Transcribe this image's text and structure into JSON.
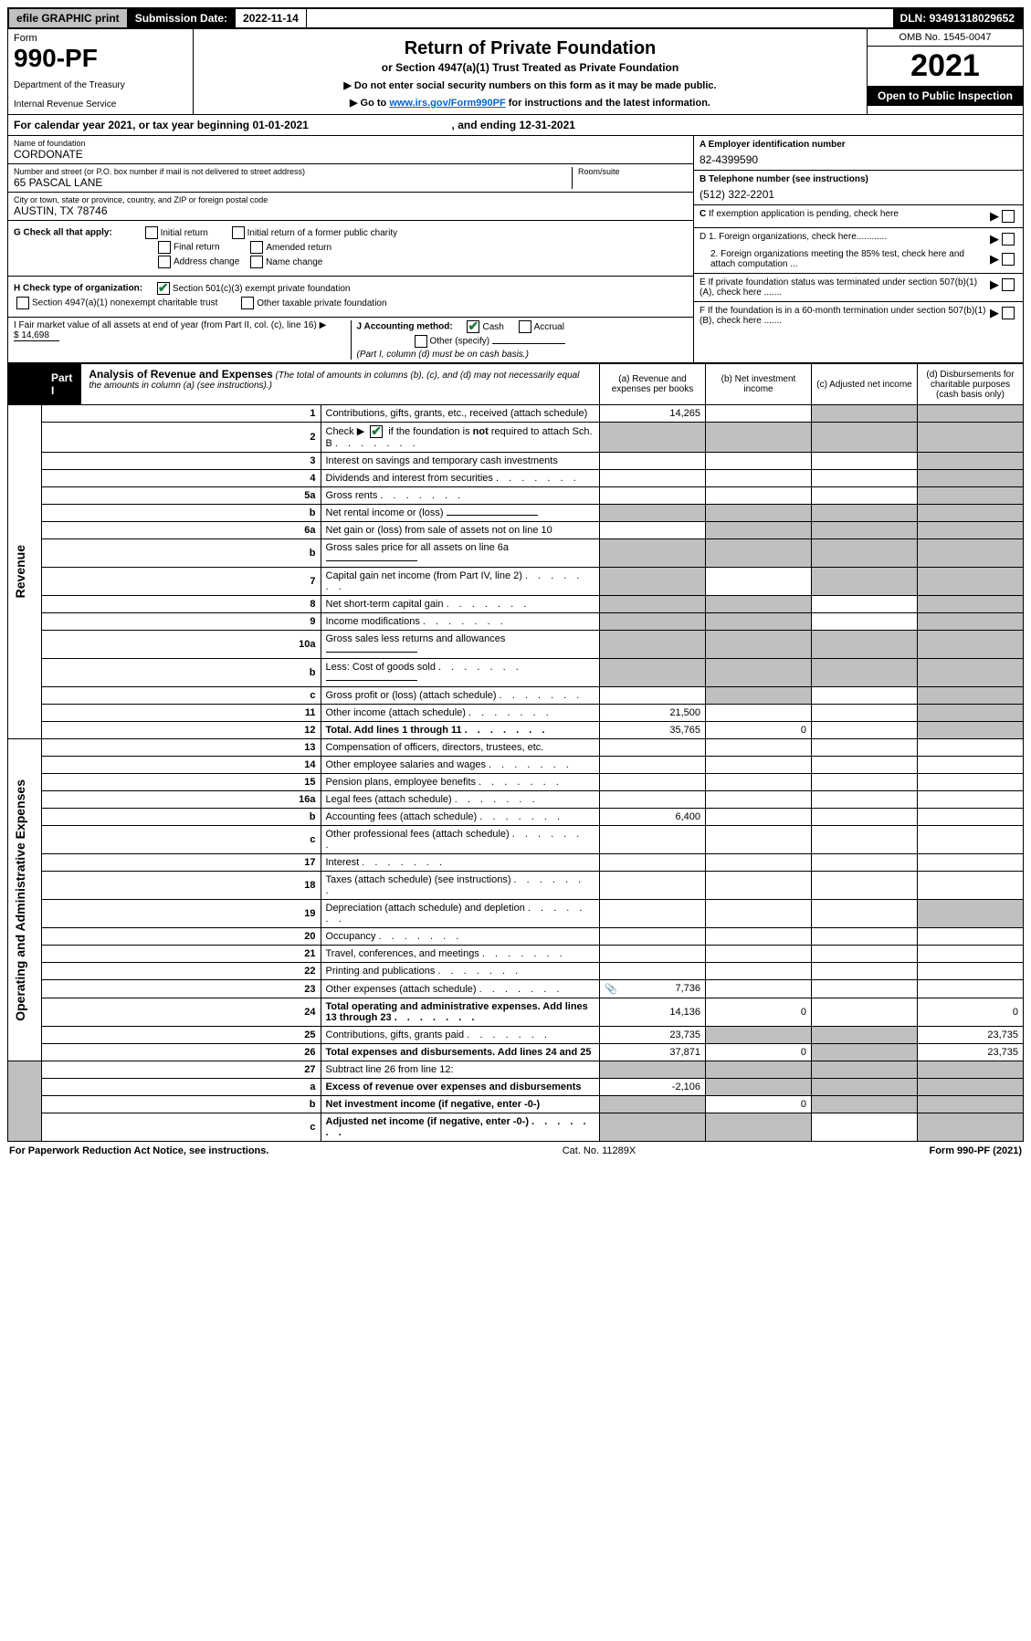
{
  "top": {
    "efile": "efile GRAPHIC print",
    "sub_label": "Submission Date:",
    "sub_date": "2022-11-14",
    "dln_label": "DLN:",
    "dln": "93491318029652"
  },
  "header": {
    "form_label": "Form",
    "form_number": "990-PF",
    "dept1": "Department of the Treasury",
    "dept2": "Internal Revenue Service",
    "title": "Return of Private Foundation",
    "subtitle": "or Section 4947(a)(1) Trust Treated as Private Foundation",
    "note1": "▶ Do not enter social security numbers on this form as it may be made public.",
    "note2_pre": "▶ Go to ",
    "note2_link": "www.irs.gov/Form990PF",
    "note2_post": " for instructions and the latest information.",
    "omb": "OMB No. 1545-0047",
    "year": "2021",
    "open": "Open to Public Inspection"
  },
  "calyear": {
    "text_pre": "For calendar year 2021, or tax year beginning ",
    "begin": "01-01-2021",
    "text_mid": " , and ending ",
    "end": "12-31-2021"
  },
  "entity": {
    "name_label": "Name of foundation",
    "name": "CORDONATE",
    "addr_label": "Number and street (or P.O. box number if mail is not delivered to street address)",
    "addr": "65 PASCAL LANE",
    "room_label": "Room/suite",
    "city_label": "City or town, state or province, country, and ZIP or foreign postal code",
    "city": "AUSTIN, TX  78746"
  },
  "right_info": {
    "A_label": "A Employer identification number",
    "A_val": "82-4399590",
    "B_label": "B Telephone number (see instructions)",
    "B_val": "(512) 322-2201",
    "C": "C If exemption application is pending, check here",
    "D1": "D 1. Foreign organizations, check here............",
    "D2": "2. Foreign organizations meeting the 85% test, check here and attach computation ...",
    "E": "E If private foundation status was terminated under section 507(b)(1)(A), check here .......",
    "F": "F If the foundation is in a 60-month termination under section 507(b)(1)(B), check here ......."
  },
  "checks": {
    "G_label": "G Check all that apply:",
    "initial": "Initial return",
    "initial_former": "Initial return of a former public charity",
    "final": "Final return",
    "amended": "Amended return",
    "addr_change": "Address change",
    "name_change": "Name change",
    "H_label": "H Check type of organization:",
    "H_501c3": "Section 501(c)(3) exempt private foundation",
    "H_4947": "Section 4947(a)(1) nonexempt charitable trust",
    "H_other": "Other taxable private foundation",
    "I_label": "I Fair market value of all assets at end of year (from Part II, col. (c), line 16) ▶",
    "I_val": "$  14,698",
    "J_label": "J Accounting method:",
    "J_cash": "Cash",
    "J_accrual": "Accrual",
    "J_other": "Other (specify)",
    "J_note": "(Part I, column (d) must be on cash basis.)"
  },
  "part1": {
    "label": "Part I",
    "title": "Analysis of Revenue and Expenses",
    "title_note": " (The total of amounts in columns (b), (c), and (d) may not necessarily equal the amounts in column (a) (see instructions).)",
    "col_a": "(a)  Revenue and expenses per books",
    "col_b": "(b)  Net investment income",
    "col_c": "(c)  Adjusted net income",
    "col_d": "(d)  Disbursements for charitable purposes (cash basis only)"
  },
  "side": {
    "revenue": "Revenue",
    "expenses": "Operating and Administrative Expenses"
  },
  "rows": [
    {
      "n": "1",
      "d": "Contributions, gifts, grants, etc., received (attach schedule)",
      "a": "14,265",
      "shade_b": false,
      "shade_c": true,
      "shade_d": true
    },
    {
      "n": "2",
      "d": "Check ▶ ✔ if the foundation is not required to attach Sch. B",
      "dots": true,
      "shade_a": true,
      "shade_b": true,
      "shade_c": true,
      "shade_d": true,
      "check": true
    },
    {
      "n": "3",
      "d": "Interest on savings and temporary cash investments",
      "shade_d": true
    },
    {
      "n": "4",
      "d": "Dividends and interest from securities",
      "dots": true,
      "shade_d": true
    },
    {
      "n": "5a",
      "d": "Gross rents",
      "dots": true,
      "shade_d": true
    },
    {
      "n": "b",
      "d": "Net rental income or (loss)",
      "inline": true,
      "shade_a": true,
      "shade_b": true,
      "shade_c": true,
      "shade_d": true
    },
    {
      "n": "6a",
      "d": "Net gain or (loss) from sale of assets not on line 10",
      "shade_b": true,
      "shade_c": true,
      "shade_d": true
    },
    {
      "n": "b",
      "d": "Gross sales price for all assets on line 6a",
      "inline": true,
      "shade_a": true,
      "shade_b": true,
      "shade_c": true,
      "shade_d": true
    },
    {
      "n": "7",
      "d": "Capital gain net income (from Part IV, line 2)",
      "dots": true,
      "shade_a": true,
      "shade_c": true,
      "shade_d": true
    },
    {
      "n": "8",
      "d": "Net short-term capital gain",
      "dots": true,
      "shade_a": true,
      "shade_b": true,
      "shade_d": true
    },
    {
      "n": "9",
      "d": "Income modifications",
      "dots": true,
      "shade_a": true,
      "shade_b": true,
      "shade_d": true
    },
    {
      "n": "10a",
      "d": "Gross sales less returns and allowances",
      "inline": true,
      "shade_a": true,
      "shade_b": true,
      "shade_c": true,
      "shade_d": true
    },
    {
      "n": "b",
      "d": "Less: Cost of goods sold",
      "dots": true,
      "inline": true,
      "shade_a": true,
      "shade_b": true,
      "shade_c": true,
      "shade_d": true
    },
    {
      "n": "c",
      "d": "Gross profit or (loss) (attach schedule)",
      "dots": true,
      "shade_b": true,
      "shade_d": true
    },
    {
      "n": "11",
      "d": "Other income (attach schedule)",
      "dots": true,
      "a": "21,500",
      "shade_d": true
    },
    {
      "n": "12",
      "d": "Total. Add lines 1 through 11",
      "dots": true,
      "bold": true,
      "a": "35,765",
      "b": "0",
      "shade_d": true
    }
  ],
  "exp_rows": [
    {
      "n": "13",
      "d": "Compensation of officers, directors, trustees, etc."
    },
    {
      "n": "14",
      "d": "Other employee salaries and wages",
      "dots": true
    },
    {
      "n": "15",
      "d": "Pension plans, employee benefits",
      "dots": true
    },
    {
      "n": "16a",
      "d": "Legal fees (attach schedule)",
      "dots": true
    },
    {
      "n": "b",
      "d": "Accounting fees (attach schedule)",
      "dots": true,
      "a": "6,400"
    },
    {
      "n": "c",
      "d": "Other professional fees (attach schedule)",
      "dots": true
    },
    {
      "n": "17",
      "d": "Interest",
      "dots": true
    },
    {
      "n": "18",
      "d": "Taxes (attach schedule) (see instructions)",
      "dots": true
    },
    {
      "n": "19",
      "d": "Depreciation (attach schedule) and depletion",
      "dots": true,
      "shade_d": true
    },
    {
      "n": "20",
      "d": "Occupancy",
      "dots": true
    },
    {
      "n": "21",
      "d": "Travel, conferences, and meetings",
      "dots": true
    },
    {
      "n": "22",
      "d": "Printing and publications",
      "dots": true
    },
    {
      "n": "23",
      "d": "Other expenses (attach schedule)",
      "dots": true,
      "a": "7,736",
      "icon": true
    },
    {
      "n": "24",
      "d": "Total operating and administrative expenses. Add lines 13 through 23",
      "dots": true,
      "bold": true,
      "a": "14,136",
      "b": "0",
      "d_val": "0"
    },
    {
      "n": "25",
      "d": "Contributions, gifts, grants paid",
      "dots": true,
      "a": "23,735",
      "shade_b": true,
      "shade_c": true,
      "d_val": "23,735"
    },
    {
      "n": "26",
      "d": "Total expenses and disbursements. Add lines 24 and 25",
      "bold": true,
      "a": "37,871",
      "b": "0",
      "shade_c": true,
      "d_val": "23,735"
    }
  ],
  "bottom_rows": [
    {
      "n": "27",
      "d": "Subtract line 26 from line 12:",
      "shade_a": true,
      "shade_b": true,
      "shade_c": true,
      "shade_d": true
    },
    {
      "n": "a",
      "d": "Excess of revenue over expenses and disbursements",
      "bold": true,
      "a": "-2,106",
      "shade_b": true,
      "shade_c": true,
      "shade_d": true
    },
    {
      "n": "b",
      "d": "Net investment income (if negative, enter -0-)",
      "bold": true,
      "shade_a": true,
      "b": "0",
      "shade_c": true,
      "shade_d": true
    },
    {
      "n": "c",
      "d": "Adjusted net income (if negative, enter -0-)",
      "bold": true,
      "dots": true,
      "shade_a": true,
      "shade_b": true,
      "shade_d": true
    }
  ],
  "footer": {
    "left": "For Paperwork Reduction Act Notice, see instructions.",
    "mid": "Cat. No. 11289X",
    "right": "Form 990-PF (2021)"
  },
  "colors": {
    "shade": "#c0c0c0",
    "link": "#0066cc",
    "check": "#1a7a3a"
  }
}
